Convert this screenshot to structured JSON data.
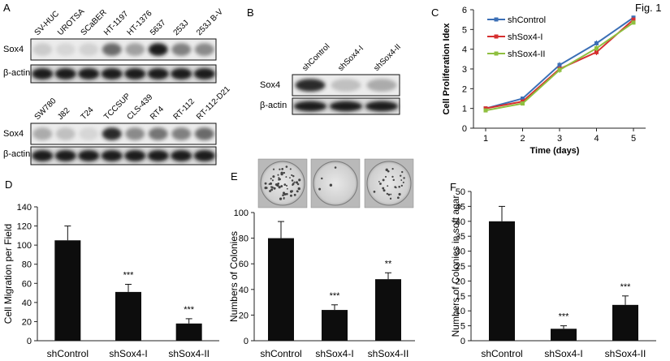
{
  "figure_label": "Fig. 1",
  "panel_letters": [
    "A",
    "B",
    "C",
    "D",
    "E",
    "F"
  ],
  "blots": {
    "A_top": {
      "lanes": [
        "SV-HUC",
        "UROTSA",
        "SCaBER",
        "HT-1197",
        "HT-1376",
        "5637",
        "253J",
        "253J B-V"
      ],
      "rows": [
        "Sox4",
        "β-actin"
      ],
      "sox4_intensity": [
        0.15,
        0.1,
        0.12,
        0.6,
        0.35,
        0.95,
        0.5,
        0.45
      ]
    },
    "A_bottom": {
      "lanes": [
        "SW780",
        "J82",
        "T24",
        "TCCSUP",
        "CLS-439",
        "RT4",
        "RT-112",
        "RT-112-D21"
      ],
      "rows": [
        "Sox4",
        "β-actin"
      ],
      "sox4_intensity": [
        0.3,
        0.2,
        0.1,
        0.9,
        0.45,
        0.55,
        0.5,
        0.6
      ]
    },
    "B": {
      "lanes": [
        "shControl",
        "shSox4-I",
        "shSox4-II"
      ],
      "rows": [
        "Sox4",
        "β-actin"
      ],
      "sox4_intensity": [
        0.9,
        0.2,
        0.3
      ]
    }
  },
  "colonies": {
    "images": [
      "shControl",
      "shSox4-I",
      "shSox4-II"
    ]
  },
  "chart_data": [
    {
      "panel": "C",
      "type": "line",
      "title": "",
      "xlabel": "Time (days)",
      "ylabel": "Cell Proliferation Idex",
      "x": [
        1,
        2,
        3,
        4,
        5
      ],
      "xticks": [
        "1",
        "2",
        "3",
        "4",
        "5"
      ],
      "ylim": [
        0,
        6
      ],
      "yticks": [
        0,
        1,
        2,
        3,
        4,
        5,
        6
      ],
      "legend_position": "top-left",
      "grid": false,
      "series": [
        {
          "name": "shControl",
          "values": [
            1.0,
            1.5,
            3.2,
            4.3,
            5.6
          ],
          "errors": [
            0.05,
            0.1,
            0.15,
            0.15,
            0.1
          ],
          "color": "#3b6fb6"
        },
        {
          "name": "shSox4-I",
          "values": [
            1.0,
            1.35,
            3.0,
            3.85,
            5.5
          ],
          "errors": [
            0.05,
            0.1,
            0.15,
            0.15,
            0.1
          ],
          "color": "#d62f2f"
        },
        {
          "name": "shSox4-II",
          "values": [
            0.9,
            1.25,
            2.95,
            4.05,
            5.35
          ],
          "errors": [
            0.05,
            0.1,
            0.15,
            0.15,
            0.1
          ],
          "color": "#8fbf3f"
        }
      ]
    },
    {
      "panel": "D",
      "type": "bar",
      "title": "",
      "xlabel": "",
      "ylabel": "Cell Migration per Field",
      "categories": [
        "shControl",
        "shSox4-I",
        "shSox4-II"
      ],
      "values": [
        105,
        51,
        18
      ],
      "errors": [
        15,
        8,
        5
      ],
      "annotations": [
        "",
        "***",
        "***"
      ],
      "ylim": [
        0,
        140
      ],
      "yticks": [
        0,
        20,
        40,
        60,
        80,
        100,
        120,
        140
      ],
      "grid": false
    },
    {
      "panel": "E",
      "type": "bar",
      "title": "",
      "xlabel": "",
      "ylabel": "Numbers of Colonies",
      "categories": [
        "shControl",
        "shSox4-I",
        "shSox4-II"
      ],
      "values": [
        80,
        24,
        48
      ],
      "errors": [
        13,
        4,
        5
      ],
      "annotations": [
        "",
        "***",
        "**"
      ],
      "ylim": [
        0,
        100
      ],
      "yticks": [
        0,
        20,
        40,
        60,
        80,
        100
      ],
      "grid": false
    },
    {
      "panel": "F",
      "type": "bar",
      "title": "",
      "xlabel": "",
      "ylabel": "Numbers of Colonies in soft agar",
      "categories": [
        "shControl",
        "shSox4-I",
        "shSox4-II"
      ],
      "values": [
        40,
        4,
        12
      ],
      "errors": [
        5,
        1,
        3
      ],
      "annotations": [
        "",
        "***",
        "***"
      ],
      "ylim": [
        0,
        50
      ],
      "yticks": [
        0,
        5,
        10,
        15,
        20,
        25,
        30,
        35,
        40,
        45,
        50
      ],
      "grid": false
    }
  ]
}
